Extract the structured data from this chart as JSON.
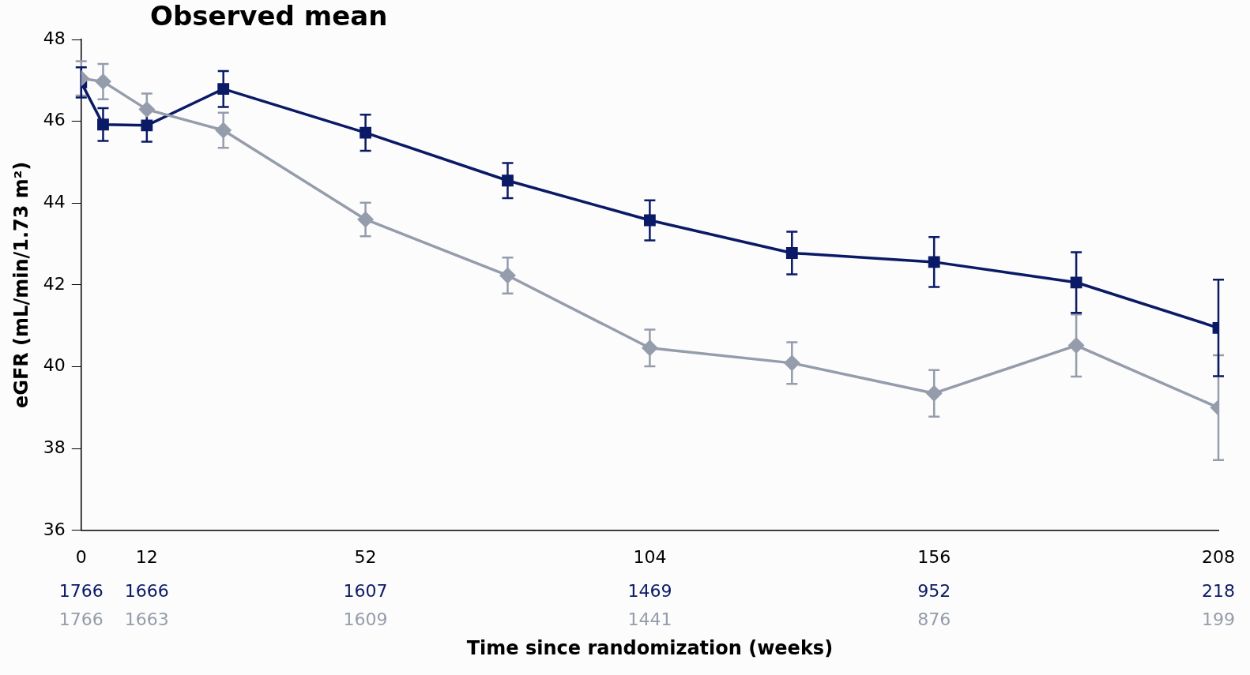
{
  "chart_data": {
    "type": "line",
    "title": "Observed mean",
    "xlabel": "Time since randomization (weeks)",
    "ylabel": "eGFR (mL/min/1.73 m²)",
    "x": [
      0,
      4,
      12,
      26,
      52,
      78,
      104,
      130,
      156,
      182,
      208
    ],
    "series": [
      {
        "color": "#0a1a66",
        "marker": "square",
        "values": [
          46.95,
          45.92,
          45.9,
          46.79,
          45.72,
          44.55,
          43.58,
          42.78,
          42.56,
          42.06,
          40.95
        ],
        "errors": [
          0.37,
          0.4,
          0.4,
          0.44,
          0.44,
          0.43,
          0.49,
          0.52,
          0.61,
          0.74,
          1.18
        ]
      },
      {
        "color": "#959cab",
        "marker": "diamond",
        "values": [
          47.05,
          46.97,
          46.29,
          45.78,
          43.6,
          42.23,
          40.46,
          40.09,
          39.35,
          40.52,
          39.0
        ],
        "errors": [
          0.42,
          0.43,
          0.39,
          0.43,
          0.41,
          0.44,
          0.45,
          0.51,
          0.57,
          0.76,
          1.28
        ]
      }
    ],
    "xlim": [
      0,
      208
    ],
    "xticks": [
      0,
      12,
      52,
      104,
      156,
      208
    ],
    "ylim": [
      36,
      48
    ],
    "yticks": [
      36,
      38,
      40,
      42,
      44,
      46,
      48
    ],
    "grid": false,
    "legend": false,
    "line_style": "solid",
    "annotations": [
      "1766",
      "1666",
      "1607",
      "1469",
      "952",
      "218",
      "1766",
      "1663",
      "1609",
      "1441",
      "876",
      "199"
    ]
  }
}
